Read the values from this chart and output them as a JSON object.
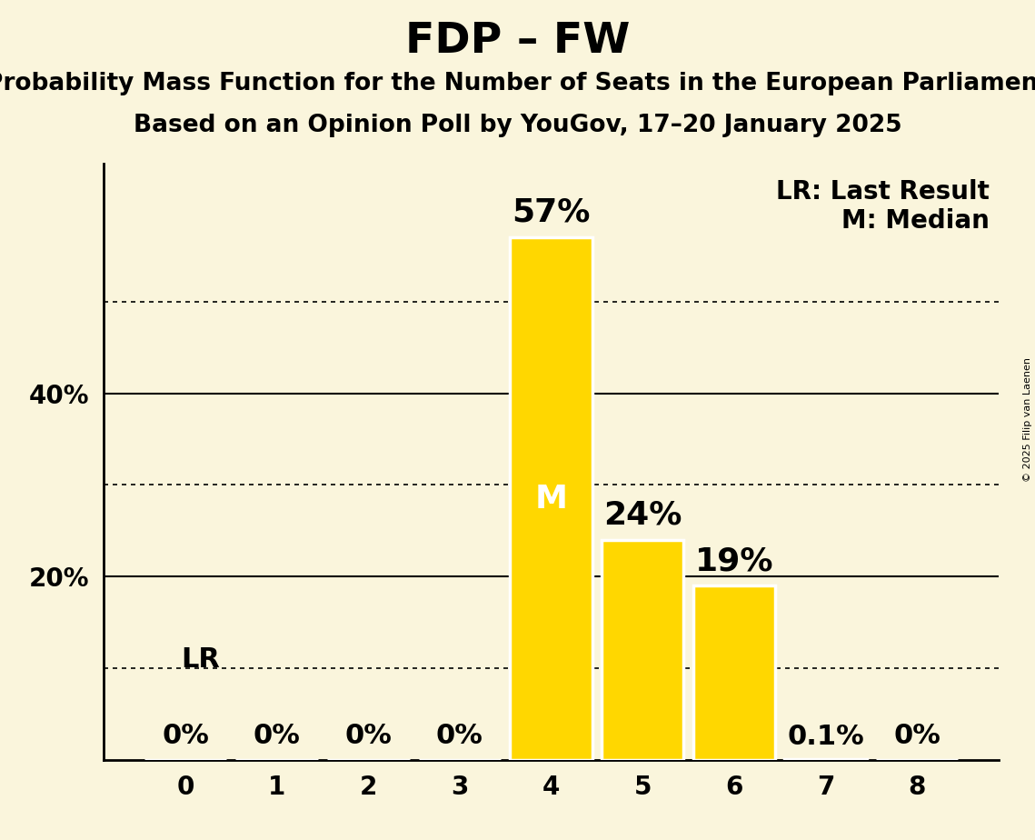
{
  "title": "FDP – FW",
  "subtitle1": "Probability Mass Function for the Number of Seats in the European Parliament",
  "subtitle2": "Based on an Opinion Poll by YouGov, 17–20 January 2025",
  "copyright": "© 2025 Filip van Laenen",
  "categories": [
    0,
    1,
    2,
    3,
    4,
    5,
    6,
    7,
    8
  ],
  "values": [
    0.0,
    0.0,
    0.0,
    0.0,
    57.0,
    24.0,
    19.0,
    0.1,
    0.0
  ],
  "bar_color": "#FFD700",
  "bar_edge_color": "#FFFFFF",
  "background_color": "#FAF5DC",
  "median_bar": 4,
  "lr_bar": 0,
  "ylim": [
    0,
    65
  ],
  "yticks_solid": [
    20,
    40
  ],
  "ytick_dotted": [
    10,
    30,
    50
  ],
  "legend_lr": "LR: Last Result",
  "legend_m": "M: Median",
  "label_fontsize": 20,
  "title_fontsize": 34,
  "subtitle_fontsize": 19,
  "annotation_fontsize": 22,
  "annotation_large_fontsize": 26
}
